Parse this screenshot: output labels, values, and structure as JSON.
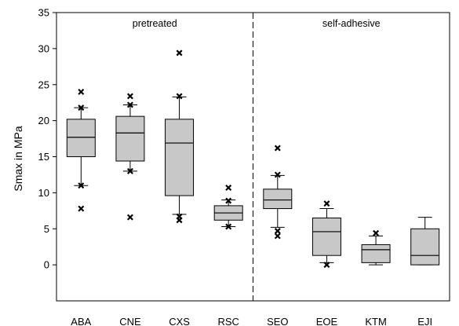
{
  "chart_data": {
    "type": "boxplot",
    "ylabel": "Smax in MPa",
    "xlabel": "",
    "ylim": [
      -5,
      35
    ],
    "yticks": [
      0,
      5,
      10,
      15,
      20,
      25,
      30,
      35
    ],
    "grid": false,
    "legend": "none",
    "groups": [
      {
        "label": "pretreated",
        "categories": [
          "ABA",
          "CNE",
          "CXS",
          "RSC"
        ]
      },
      {
        "label": "self-adhesive",
        "categories": [
          "SEO",
          "EOE",
          "KTM",
          "EJI"
        ]
      }
    ],
    "categories": [
      "ABA",
      "CNE",
      "CXS",
      "RSC",
      "SEO",
      "EOE",
      "KTM",
      "EJI"
    ],
    "boxes": [
      {
        "name": "ABA",
        "q1": 15.0,
        "median": 17.7,
        "q3": 20.2,
        "whisker_low": 11.0,
        "whisker_high": 21.8,
        "outliers": [
          24.0,
          21.8,
          11.0,
          7.8
        ]
      },
      {
        "name": "CNE",
        "q1": 14.4,
        "median": 18.3,
        "q3": 20.6,
        "whisker_low": 13.0,
        "whisker_high": 22.2,
        "outliers": [
          23.4,
          22.2,
          13.0,
          6.6
        ]
      },
      {
        "name": "CXS",
        "q1": 9.6,
        "median": 16.9,
        "q3": 20.2,
        "whisker_low": 7.0,
        "whisker_high": 23.3,
        "outliers": [
          29.4,
          23.4,
          6.7,
          6.2
        ]
      },
      {
        "name": "RSC",
        "q1": 6.2,
        "median": 7.2,
        "q3": 8.2,
        "whisker_low": 5.3,
        "whisker_high": 9.0,
        "outliers": [
          10.7,
          8.9,
          5.3
        ]
      },
      {
        "name": "SEO",
        "q1": 7.8,
        "median": 9.0,
        "q3": 10.5,
        "whisker_low": 5.2,
        "whisker_high": 12.4,
        "outliers": [
          16.2,
          12.5,
          4.7,
          4.0
        ]
      },
      {
        "name": "EOE",
        "q1": 1.3,
        "median": 4.6,
        "q3": 6.5,
        "whisker_low": 0.3,
        "whisker_high": 7.8,
        "outliers": [
          8.5,
          0.0
        ]
      },
      {
        "name": "KTM",
        "q1": 0.3,
        "median": 2.1,
        "q3": 2.8,
        "whisker_low": 0.0,
        "whisker_high": 4.0,
        "outliers": [
          4.4
        ]
      },
      {
        "name": "EJI",
        "q1": 0.0,
        "median": 1.3,
        "q3": 5.0,
        "whisker_low": 0.0,
        "whisker_high": 6.6,
        "outliers": []
      }
    ],
    "box_color": "#c8c8c8",
    "line_color": "#000000"
  }
}
